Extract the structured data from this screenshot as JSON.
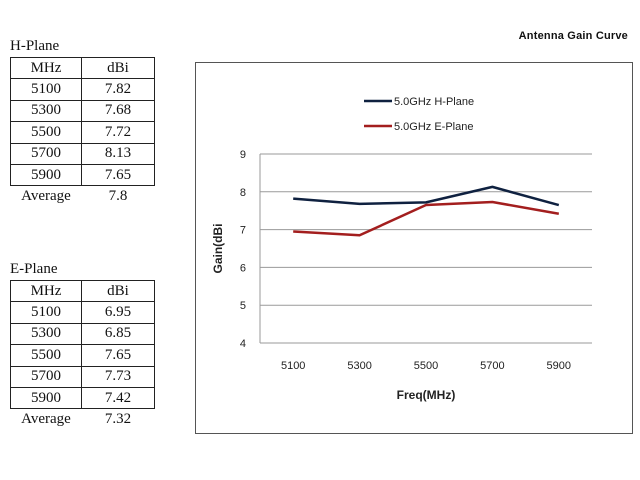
{
  "page_title": "Antenna Gain Curve",
  "h_plane": {
    "heading": "H-Plane",
    "col_mhz": "MHz",
    "col_dbi": "dBi",
    "rows": [
      {
        "mhz": "5100",
        "dbi": "7.82"
      },
      {
        "mhz": "5300",
        "dbi": "7.68"
      },
      {
        "mhz": "5500",
        "dbi": "7.72"
      },
      {
        "mhz": "5700",
        "dbi": "8.13"
      },
      {
        "mhz": "5900",
        "dbi": "7.65"
      }
    ],
    "average_label": "Average",
    "average_value": "7.8"
  },
  "e_plane": {
    "heading": "E-Plane",
    "col_mhz": "MHz",
    "col_dbi": "dBi",
    "rows": [
      {
        "mhz": "5100",
        "dbi": "6.95"
      },
      {
        "mhz": "5300",
        "dbi": "6.85"
      },
      {
        "mhz": "5500",
        "dbi": "7.65"
      },
      {
        "mhz": "5700",
        "dbi": "7.73"
      },
      {
        "mhz": "5900",
        "dbi": "7.42"
      }
    ],
    "average_label": "Average",
    "average_value": "7.32"
  },
  "chart_data": {
    "type": "line",
    "title": "Antenna Gain Curve",
    "categories": [
      "5100",
      "5300",
      "5500",
      "5700",
      "5900"
    ],
    "series": [
      {
        "name": "5.0GHz H-Plane",
        "color": "#0f2140",
        "values": [
          7.82,
          7.68,
          7.72,
          8.13,
          7.65
        ]
      },
      {
        "name": "5.0GHz E-Plane",
        "color": "#a31e1e",
        "values": [
          6.95,
          6.85,
          7.65,
          7.73,
          7.42
        ]
      }
    ],
    "xlabel": "Freq(MHz)",
    "ylabel": "Gain(dBi",
    "ylim": [
      4,
      9
    ],
    "yticks": [
      "4",
      "5",
      "6",
      "7",
      "8",
      "9"
    ],
    "grid": true,
    "legend": "top"
  }
}
